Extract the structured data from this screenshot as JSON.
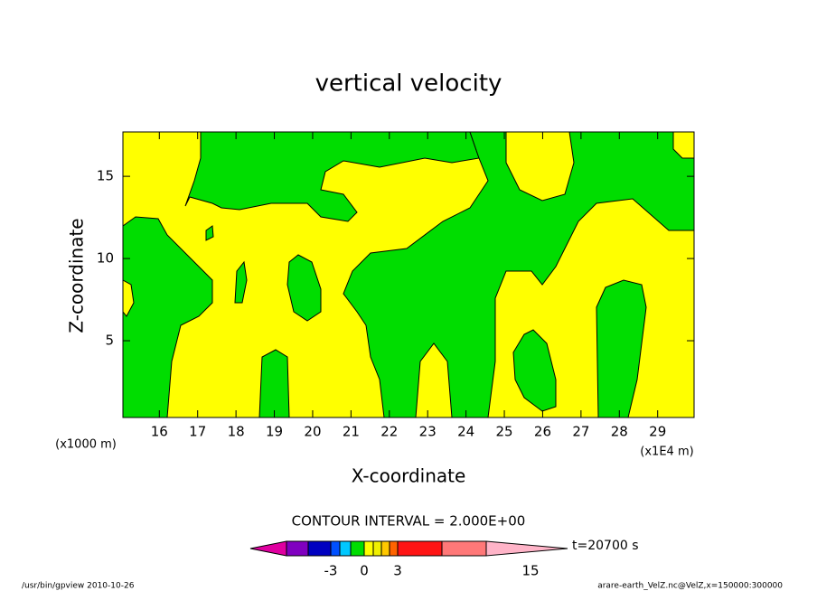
{
  "chart_data": {
    "type": "contour",
    "title": "vertical velocity",
    "x_label": "X-coordinate",
    "y_label": "Z-coordinate",
    "x_unit": "(x1E4 m)",
    "y_unit": "(x1000 m)",
    "xlim": [
      15.05,
      29.95
    ],
    "ylim": [
      0.33,
      17.7
    ],
    "xticks": [
      16,
      17,
      18,
      19,
      20,
      21,
      22,
      23,
      24,
      25,
      26,
      27,
      28,
      29
    ],
    "yticks": [
      5,
      10,
      15
    ],
    "background_color": "#ffff00",
    "contour_interval": "CONTOUR INTERVAL = 2.000E+00",
    "time_label": "t=20700 s",
    "colorbar": {
      "colors": [
        "#8000c0",
        "#0000c0",
        "#0050ff",
        "#00c8ff",
        "#00dd00",
        "#ffff00",
        "#f0f000",
        "#ffc800",
        "#ff6400",
        "#ff1414",
        "#ff7878"
      ],
      "under_color": "#e000a0",
      "over_color": "#ffb4c8",
      "ticks": [
        -3,
        0,
        3,
        15
      ]
    },
    "footer_left": "/usr/bin/gpview  2010-10-26",
    "footer_right": "arare-earth_VelZ.nc@VelZ,x=150000:300000"
  }
}
